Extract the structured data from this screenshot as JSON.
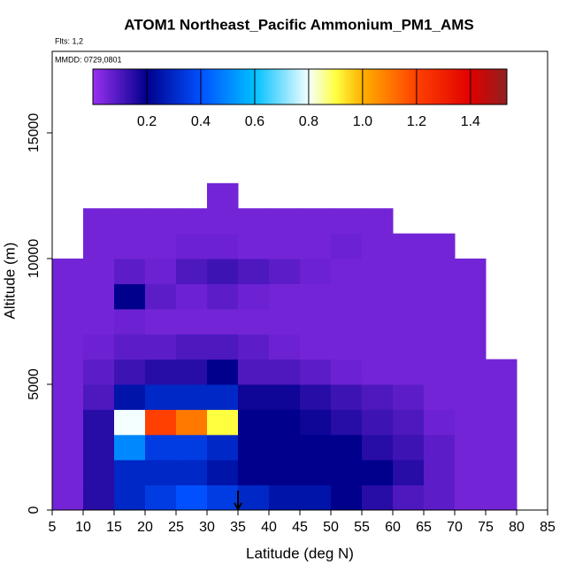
{
  "chart_data": {
    "type": "heatmap",
    "title": "ATOM1 Northeast_Pacific Ammonium_PM1_AMS",
    "annotations": [
      "Flts: 1,2",
      "MMDD: 0729,0801"
    ],
    "x_label": "Latitude (deg N)",
    "y_label": "Altitude (m)",
    "xlim": [
      5,
      85
    ],
    "ylim": [
      0,
      18240
    ],
    "xticks": [
      5,
      10,
      15,
      20,
      25,
      30,
      35,
      40,
      45,
      50,
      55,
      60,
      65,
      70,
      75,
      80,
      85
    ],
    "yticks": [
      0,
      5000,
      10000,
      15000
    ],
    "x_edges": [
      5,
      10,
      15,
      20,
      25,
      30,
      35,
      40,
      45,
      50,
      55,
      60,
      65,
      70,
      75,
      80
    ],
    "y_edges": [
      0,
      1000,
      2000,
      3000,
      4000,
      5000,
      6000,
      7000,
      8000,
      9000,
      10000,
      11000,
      12000,
      13000
    ],
    "z": [
      [
        0.05,
        0.15,
        0.3,
        0.35,
        0.4,
        0.35,
        0.3,
        0.25,
        0.25,
        0.2,
        0.15,
        0.1,
        0.08,
        0.05,
        0.05
      ],
      [
        0.05,
        0.15,
        0.3,
        0.3,
        0.3,
        0.25,
        0.2,
        0.2,
        0.2,
        0.2,
        0.2,
        0.15,
        0.08,
        0.05,
        0.05
      ],
      [
        0.05,
        0.15,
        0.5,
        0.35,
        0.35,
        0.3,
        0.2,
        0.2,
        0.2,
        0.2,
        0.15,
        0.12,
        0.08,
        0.05,
        0.05
      ],
      [
        0.05,
        0.15,
        0.8,
        1.2,
        1.1,
        0.9,
        0.2,
        0.2,
        0.18,
        0.15,
        0.12,
        0.1,
        0.06,
        0.05,
        0.05
      ],
      [
        0.05,
        0.1,
        0.25,
        0.3,
        0.3,
        0.3,
        0.18,
        0.18,
        0.15,
        0.12,
        0.1,
        0.08,
        0.05,
        0.05,
        0.05
      ],
      [
        0.05,
        0.08,
        0.12,
        0.15,
        0.15,
        0.2,
        0.1,
        0.1,
        0.08,
        0.06,
        0.05,
        0.05,
        0.05,
        0.05,
        0.05
      ],
      [
        0.05,
        0.06,
        0.08,
        0.08,
        0.1,
        0.1,
        0.08,
        0.06,
        0.05,
        0.05,
        0.05,
        0.05,
        0.05,
        0.05,
        null
      ],
      [
        0.05,
        0.05,
        0.06,
        0.05,
        0.05,
        0.05,
        0.05,
        0.05,
        0.05,
        0.05,
        0.05,
        0.05,
        0.05,
        0.05,
        null
      ],
      [
        0.05,
        0.05,
        0.2,
        0.08,
        0.06,
        0.08,
        0.06,
        0.05,
        0.05,
        0.05,
        0.05,
        0.05,
        0.05,
        0.05,
        null
      ],
      [
        0.05,
        0.05,
        0.08,
        0.06,
        0.1,
        0.12,
        0.1,
        0.08,
        0.06,
        0.05,
        0.05,
        0.05,
        0.05,
        0.05,
        null
      ],
      [
        null,
        0.05,
        0.05,
        0.05,
        0.06,
        0.06,
        0.05,
        0.05,
        0.05,
        0.06,
        0.05,
        0.05,
        0.05,
        null,
        null
      ],
      [
        null,
        0.05,
        0.05,
        0.05,
        0.05,
        0.05,
        0.05,
        0.05,
        0.05,
        0.05,
        0.05,
        null,
        null,
        null,
        null
      ],
      [
        null,
        null,
        null,
        null,
        null,
        0.05,
        null,
        null,
        null,
        null,
        null,
        null,
        null,
        null,
        null
      ]
    ],
    "clim": [
      0,
      1.535
    ],
    "colorbar_ticks": [
      0.2,
      0.4,
      0.6,
      0.8,
      {
        "value": 1,
        "label": "1.0"
      },
      1.2,
      1.4
    ],
    "colormap": [
      {
        "value": 0,
        "color": "#9a30f0"
      },
      {
        "value": 0.2,
        "color": "#00008c"
      },
      {
        "value": 0.4,
        "color": "#0050ff"
      },
      {
        "value": 0.6,
        "color": "#00c0ff"
      },
      {
        "value": 0.8,
        "color": "#f4ffff"
      },
      {
        "value": 0.9,
        "color": "#ffff40"
      },
      {
        "value": 1,
        "color": "#ffb000"
      },
      {
        "value": 1.2,
        "color": "#ff4000"
      },
      {
        "value": 1.4,
        "color": "#e00000"
      },
      {
        "value": 1.535,
        "color": "#902020"
      }
    ],
    "arrow_lat": 35
  }
}
